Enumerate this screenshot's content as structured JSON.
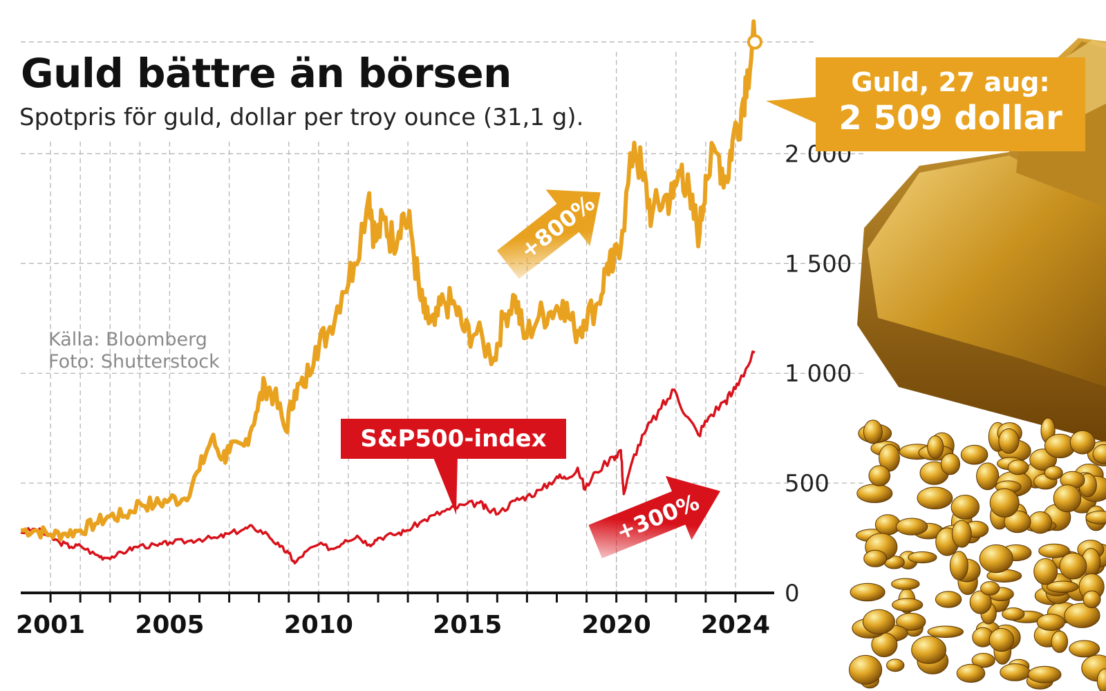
{
  "title": "Guld bättre än börsen",
  "subtitle": "Spotpris för guld, dollar per troy ounce (31,1 g).",
  "source_lines": [
    "Källa: Bloomberg",
    "Foto: Shutterstock"
  ],
  "callout": {
    "line1": "Guld, 27 aug:",
    "line2": "2 509 dollar"
  },
  "sp500_label": "S&P500-index",
  "gold_change_label": "+800%",
  "sp_change_label": "+300%",
  "colors": {
    "gold": "#e8a21f",
    "sp500": "#d8121b",
    "grid": "#b5b5b5"
  },
  "chart_data": {
    "type": "line",
    "x_ticks": [
      "2001",
      "2005",
      "2010",
      "2015",
      "2020",
      "2024"
    ],
    "y_ticks": [
      "0",
      "500",
      "1 000",
      "1 500",
      "2 000"
    ],
    "ylim": [
      0,
      2700
    ],
    "xlim": [
      2000,
      2025.3
    ],
    "grid": true,
    "series": [
      {
        "name": "Guld",
        "points": [
          [
            2000.0,
            285
          ],
          [
            2000.5,
            285
          ],
          [
            2001.0,
            265
          ],
          [
            2001.5,
            270
          ],
          [
            2002.0,
            285
          ],
          [
            2002.5,
            315
          ],
          [
            2003.0,
            350
          ],
          [
            2003.5,
            350
          ],
          [
            2004.0,
            410
          ],
          [
            2004.5,
            400
          ],
          [
            2005.0,
            425
          ],
          [
            2005.5,
            430
          ],
          [
            2006.0,
            560
          ],
          [
            2006.4,
            700
          ],
          [
            2006.8,
            620
          ],
          [
            2007.0,
            640
          ],
          [
            2007.5,
            670
          ],
          [
            2007.9,
            820
          ],
          [
            2008.2,
            950
          ],
          [
            2008.5,
            900
          ],
          [
            2008.9,
            740
          ],
          [
            2009.2,
            920
          ],
          [
            2009.5,
            940
          ],
          [
            2009.9,
            1120
          ],
          [
            2010.3,
            1180
          ],
          [
            2010.8,
            1370
          ],
          [
            2011.2,
            1500
          ],
          [
            2011.7,
            1820
          ],
          [
            2011.9,
            1600
          ],
          [
            2012.2,
            1700
          ],
          [
            2012.5,
            1600
          ],
          [
            2012.8,
            1720
          ],
          [
            2013.1,
            1650
          ],
          [
            2013.4,
            1350
          ],
          [
            2013.6,
            1250
          ],
          [
            2013.9,
            1220
          ],
          [
            2014.2,
            1330
          ],
          [
            2014.6,
            1300
          ],
          [
            2014.9,
            1190
          ],
          [
            2015.3,
            1180
          ],
          [
            2015.9,
            1070
          ],
          [
            2016.2,
            1250
          ],
          [
            2016.6,
            1350
          ],
          [
            2016.9,
            1160
          ],
          [
            2017.4,
            1260
          ],
          [
            2017.8,
            1280
          ],
          [
            2018.2,
            1330
          ],
          [
            2018.6,
            1190
          ],
          [
            2018.9,
            1240
          ],
          [
            2019.4,
            1320
          ],
          [
            2019.7,
            1500
          ],
          [
            2019.9,
            1480
          ],
          [
            2020.2,
            1650
          ],
          [
            2020.6,
            2050
          ],
          [
            2020.9,
            1880
          ],
          [
            2021.2,
            1720
          ],
          [
            2021.6,
            1800
          ],
          [
            2021.9,
            1800
          ],
          [
            2022.2,
            1950
          ],
          [
            2022.5,
            1750
          ],
          [
            2022.8,
            1640
          ],
          [
            2023.0,
            1900
          ],
          [
            2023.4,
            2000
          ],
          [
            2023.7,
            1880
          ],
          [
            2023.9,
            2060
          ],
          [
            2024.2,
            2200
          ],
          [
            2024.4,
            2380
          ],
          [
            2024.65,
            2509
          ]
        ]
      },
      {
        "name": "S&P500-index",
        "points": [
          [
            2000.0,
            275
          ],
          [
            2000.5,
            290
          ],
          [
            2000.9,
            260
          ],
          [
            2001.3,
            230
          ],
          [
            2001.7,
            210
          ],
          [
            2002.0,
            215
          ],
          [
            2002.5,
            175
          ],
          [
            2002.8,
            160
          ],
          [
            2003.2,
            170
          ],
          [
            2003.6,
            195
          ],
          [
            2004.0,
            215
          ],
          [
            2004.6,
            215
          ],
          [
            2005.0,
            230
          ],
          [
            2005.6,
            235
          ],
          [
            2006.0,
            245
          ],
          [
            2006.6,
            250
          ],
          [
            2007.0,
            270
          ],
          [
            2007.5,
            290
          ],
          [
            2007.8,
            300
          ],
          [
            2008.3,
            265
          ],
          [
            2008.7,
            210
          ],
          [
            2009.0,
            180
          ],
          [
            2009.2,
            135
          ],
          [
            2009.6,
            190
          ],
          [
            2010.0,
            220
          ],
          [
            2010.5,
            200
          ],
          [
            2010.9,
            240
          ],
          [
            2011.3,
            260
          ],
          [
            2011.7,
            220
          ],
          [
            2012.0,
            250
          ],
          [
            2012.5,
            265
          ],
          [
            2012.9,
            280
          ],
          [
            2013.4,
            320
          ],
          [
            2013.9,
            355
          ],
          [
            2014.4,
            380
          ],
          [
            2014.9,
            400
          ],
          [
            2015.4,
            410
          ],
          [
            2015.7,
            375
          ],
          [
            2016.1,
            370
          ],
          [
            2016.6,
            420
          ],
          [
            2017.0,
            440
          ],
          [
            2017.5,
            470
          ],
          [
            2018.0,
            530
          ],
          [
            2018.3,
            520
          ],
          [
            2018.7,
            570
          ],
          [
            2018.95,
            470
          ],
          [
            2019.3,
            550
          ],
          [
            2019.9,
            620
          ],
          [
            2020.15,
            650
          ],
          [
            2020.25,
            450
          ],
          [
            2020.6,
            630
          ],
          [
            2021.0,
            740
          ],
          [
            2021.5,
            840
          ],
          [
            2021.95,
            925
          ],
          [
            2022.4,
            800
          ],
          [
            2022.75,
            720
          ],
          [
            2023.1,
            800
          ],
          [
            2023.6,
            870
          ],
          [
            2023.9,
            910
          ],
          [
            2024.2,
            990
          ],
          [
            2024.65,
            1095
          ]
        ]
      }
    ]
  }
}
